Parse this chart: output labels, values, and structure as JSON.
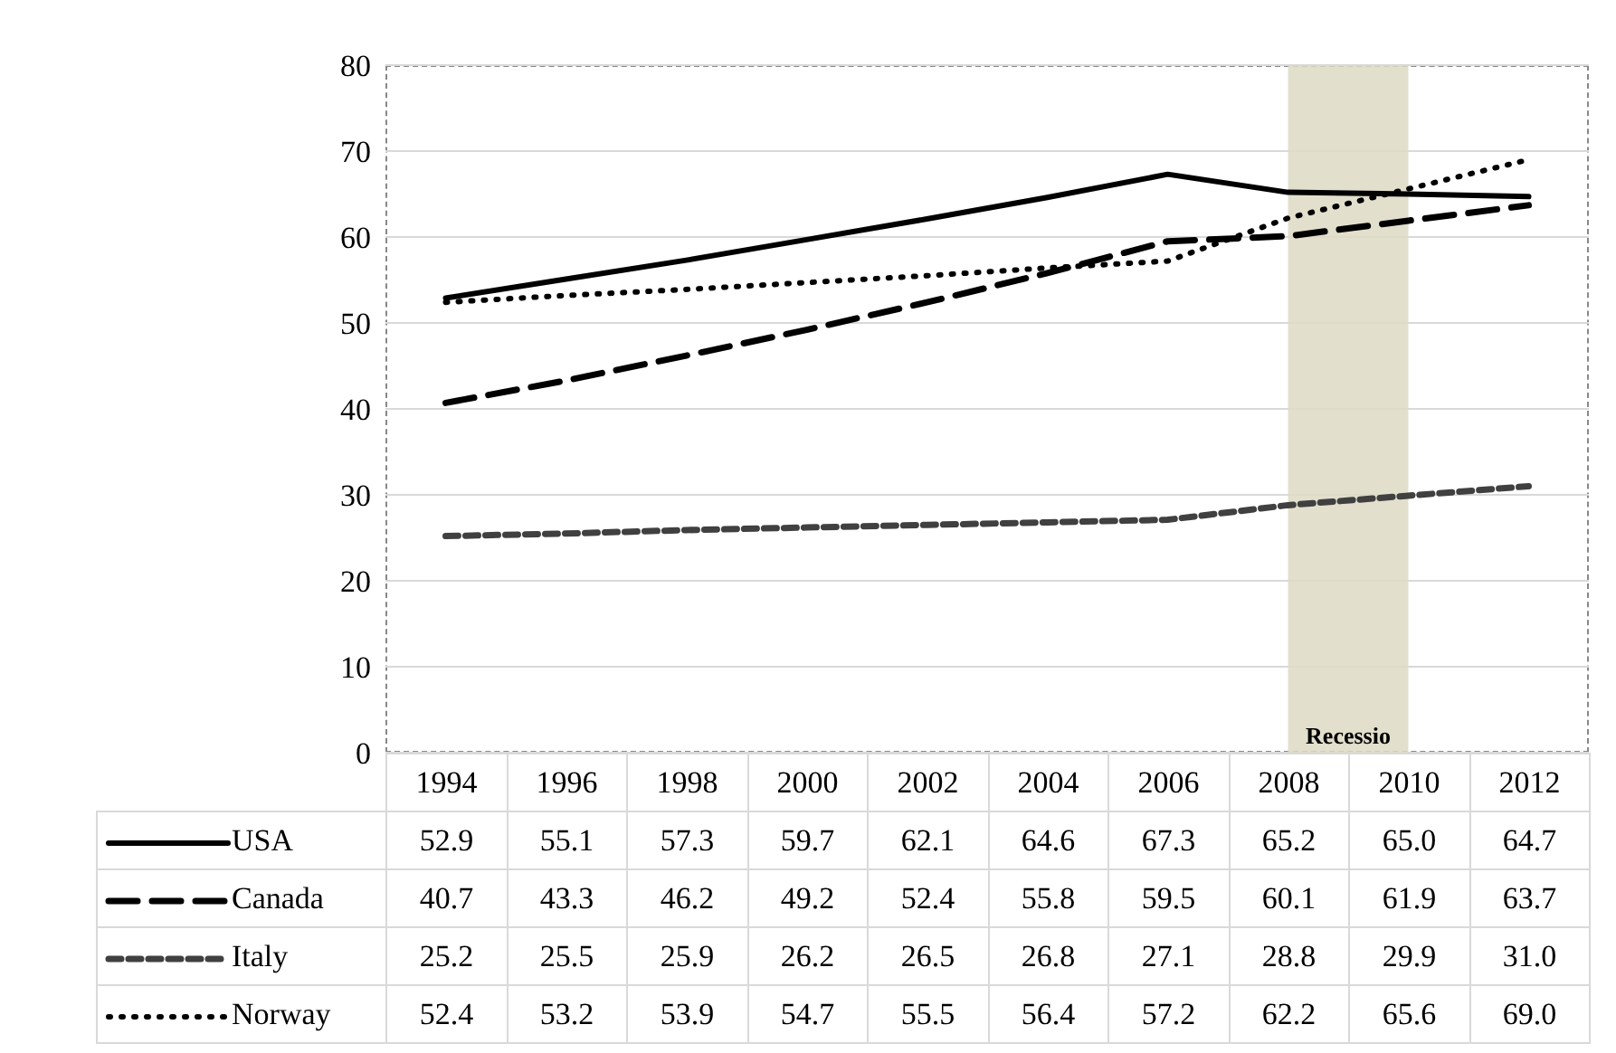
{
  "chart_data": {
    "type": "line",
    "categories": [
      "1994",
      "1996",
      "1998",
      "2000",
      "2002",
      "2004",
      "2006",
      "2008",
      "2010",
      "2012"
    ],
    "series": [
      {
        "name": "USA",
        "color": "#000000",
        "line_style": "solid",
        "values": [
          52.9,
          55.1,
          57.3,
          59.7,
          62.1,
          64.6,
          67.3,
          65.2,
          65.0,
          64.7
        ],
        "value_labels": [
          "52.9",
          "55.1",
          "57.3",
          "59.7",
          "62.1",
          "64.6",
          "67.3",
          "65.2",
          "65.0",
          "64.7"
        ]
      },
      {
        "name": "Canada",
        "color": "#000000",
        "line_style": "dashed",
        "values": [
          40.7,
          43.3,
          46.2,
          49.2,
          52.4,
          55.8,
          59.5,
          60.1,
          61.9,
          63.7
        ],
        "value_labels": [
          "40.7",
          "43.3",
          "46.2",
          "49.2",
          "52.4",
          "55.8",
          "59.5",
          "60.1",
          "61.9",
          "63.7"
        ]
      },
      {
        "name": "Italy",
        "color": "#404040",
        "line_style": "dashed",
        "values": [
          25.2,
          25.5,
          25.9,
          26.2,
          26.5,
          26.8,
          27.1,
          28.8,
          29.9,
          31.0
        ],
        "value_labels": [
          "25.2",
          "25.5",
          "25.9",
          "26.2",
          "26.5",
          "26.8",
          "27.1",
          "28.8",
          "29.9",
          "31.0"
        ]
      },
      {
        "name": "Norway",
        "color": "#000000",
        "line_style": "dotted",
        "values": [
          52.4,
          53.2,
          53.9,
          54.7,
          55.5,
          56.4,
          57.2,
          62.2,
          65.6,
          69.0
        ],
        "value_labels": [
          "52.4",
          "53.2",
          "53.9",
          "54.7",
          "55.5",
          "56.4",
          "57.2",
          "62.2",
          "65.6",
          "69.0"
        ]
      }
    ],
    "ylim": [
      0,
      80
    ],
    "yticks": [
      0,
      10,
      20,
      30,
      40,
      50,
      60,
      70,
      80
    ],
    "grid": "y",
    "legend": "bottom",
    "marker": "none",
    "bands": [
      {
        "axis": "x",
        "from": "2008",
        "to": "2010",
        "label": "Recessio",
        "color": "#ddd9c4"
      }
    ]
  }
}
